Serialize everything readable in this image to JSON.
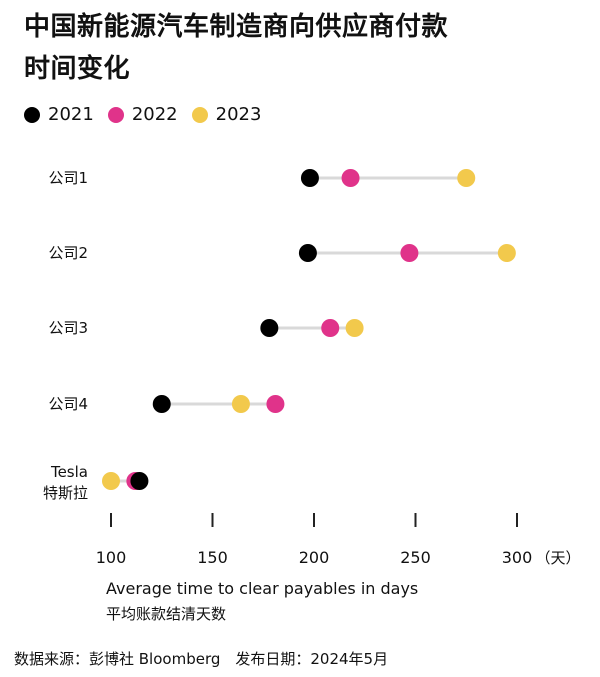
{
  "title_line1": "中国新能源汽车制造商向供应商付款",
  "title_line2": "时间变化",
  "colors": {
    "2021": "#000000",
    "2022": "#e0338a",
    "2023": "#f2c94c",
    "connector": "#d9d9d9"
  },
  "chart_data": {
    "type": "scatter",
    "title": "中国新能源汽车制造商向供应商付款时间变化",
    "xlabel": "Average time to clear payables in days",
    "xlabel_cn": "平均账款结清天数",
    "xlim": [
      100,
      300
    ],
    "xticks": [
      100,
      150,
      200,
      250,
      300
    ],
    "x_unit": "（天）",
    "legend_position": "top-left",
    "series": [
      {
        "name": "2021",
        "color": "#000000"
      },
      {
        "name": "2022",
        "color": "#e0338a"
      },
      {
        "name": "2023",
        "color": "#f2c94c"
      }
    ],
    "categories": [
      {
        "label": "公司1",
        "label2": "",
        "values": {
          "2021": 198,
          "2022": 218,
          "2023": 275
        }
      },
      {
        "label": "公司2",
        "label2": "",
        "values": {
          "2021": 197,
          "2022": 247,
          "2023": 295
        }
      },
      {
        "label": "公司3",
        "label2": "",
        "values": {
          "2021": 178,
          "2022": 208,
          "2023": 220
        }
      },
      {
        "label": "公司4",
        "label2": "",
        "values": {
          "2021": 125,
          "2022": 181,
          "2023": 164
        }
      },
      {
        "label": "Tesla",
        "label2": "特斯拉",
        "values": {
          "2021": 114,
          "2022": 112,
          "2023": 100
        }
      }
    ]
  },
  "source_text": "数据来源：彭博社 Bloomberg　发布日期：2024年5月"
}
